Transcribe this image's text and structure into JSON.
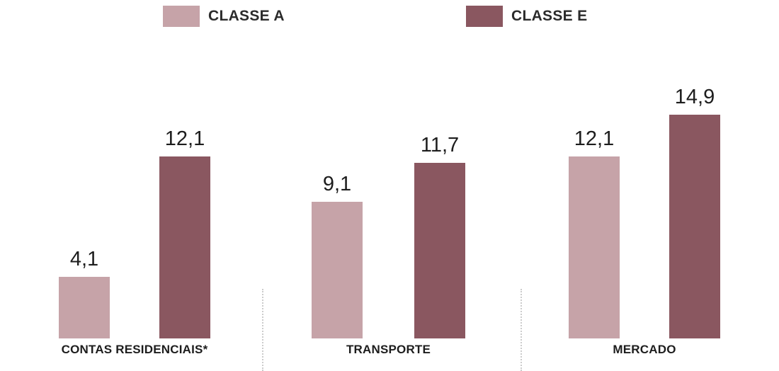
{
  "legend": {
    "items": [
      {
        "label": "CLASSE A",
        "color": "#c6a3a8"
      },
      {
        "label": "CLASSE E",
        "color": "#8a5760"
      }
    ]
  },
  "chart_data": {
    "type": "bar",
    "title": "",
    "xlabel": "",
    "ylabel": "",
    "categories": [
      "CONTAS RESIDENCIAIS*",
      "TRANSPORTE",
      "MERCADO"
    ],
    "series": [
      {
        "name": "CLASSE A",
        "color": "#c6a3a8",
        "values": [
          4.1,
          9.1,
          12.1
        ]
      },
      {
        "name": "CLASSE E",
        "color": "#8a5760",
        "values": [
          12.1,
          11.7,
          14.9
        ]
      }
    ],
    "value_labels": [
      [
        "4,1",
        "12,1"
      ],
      [
        "9,1",
        "11,7"
      ],
      [
        "12,1",
        "14,9"
      ]
    ],
    "ylim": [
      0,
      15.5
    ],
    "grid": false,
    "legend_position": "top",
    "axis_visible": false
  }
}
